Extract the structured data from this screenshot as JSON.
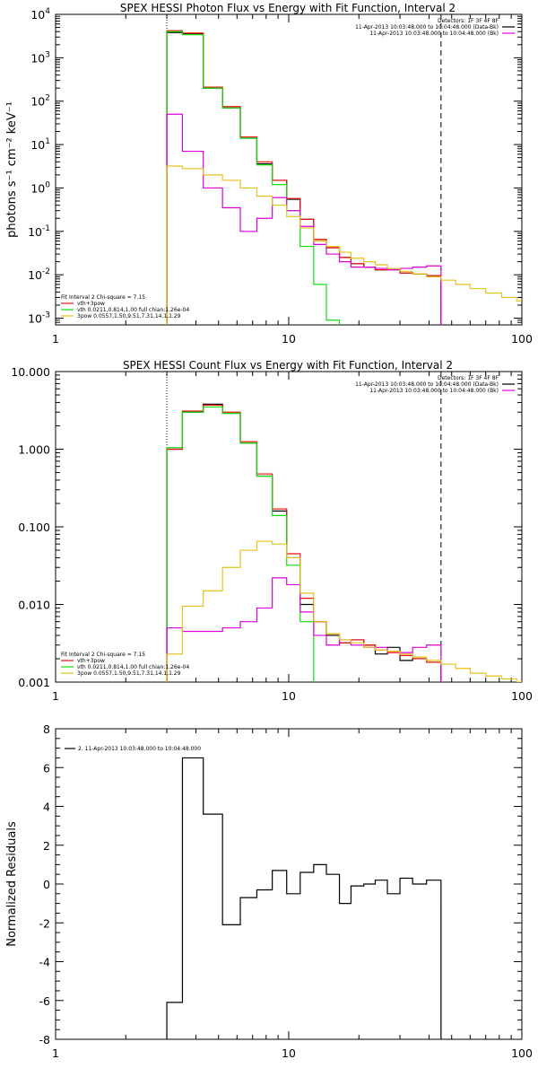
{
  "colors": {
    "black": "#000000",
    "red": "#ee1111",
    "green": "#11dd11",
    "magenta": "#dd00dd",
    "yellow": "#e6c21a"
  },
  "chart_data": [
    {
      "type": "line",
      "title": "SPEX HESSI Photon Flux vs Energy with Fit Function, Interval 2",
      "xlabel": "",
      "ylabel": "photons s⁻¹ cm⁻² keV⁻¹",
      "xscale": "log",
      "yscale": "log",
      "xlim": [
        1,
        100
      ],
      "ylim": [
        0.0007,
        10000
      ],
      "xticks": [
        "1",
        "10",
        "100"
      ],
      "yticks": [
        {
          "v": 0.001,
          "base": "10",
          "exp": "-3"
        },
        {
          "v": 0.01,
          "base": "10",
          "exp": "-2"
        },
        {
          "v": 0.1,
          "base": "10",
          "exp": "-1"
        },
        {
          "v": 1,
          "base": "10",
          "exp": "0"
        },
        {
          "v": 10,
          "base": "10",
          "exp": "1"
        },
        {
          "v": 100,
          "base": "10",
          "exp": "2"
        },
        {
          "v": 1000,
          "base": "10",
          "exp": "3"
        },
        {
          "v": 10000,
          "base": "10",
          "exp": "4"
        }
      ],
      "vlines": [
        {
          "x": 3,
          "style": "dotted"
        },
        {
          "x": 45,
          "style": "dashed"
        }
      ],
      "legend_top_right": {
        "lines": [
          "Detectors: 1F 3F 4F 8F",
          "11-Apr-2013 10:03:48.000 to 10:04:48.000 (Data-Bk)",
          "11-Apr-2013 10:03:48.000 to 10:04:48.000 (Bk)"
        ],
        "colors": [
          "",
          "black",
          "magenta"
        ]
      },
      "legend_bottom_left": {
        "lines": [
          "Fit Interval 2   Chi-square = 7.15",
          "vth+3pow",
          "vth 0.0211,0.814,1.00  full chian:1.26e-04",
          "3pow 0.0557,1.50,9.51,7.31,14.1,1.29"
        ],
        "colors": [
          "",
          "red",
          "green",
          "yellow"
        ]
      },
      "edges": [
        3,
        3.5,
        4.3,
        5.2,
        6.2,
        7.3,
        8.5,
        9.8,
        11.2,
        12.8,
        14.5,
        16.5,
        18.5,
        21,
        23.5,
        26.5,
        30,
        34,
        39,
        45
      ],
      "series": [
        {
          "color": "black",
          "values": [
            3800,
            3600,
            200,
            70,
            14,
            3.6,
            1.5,
            0.55,
            0.19,
            0.065,
            0.042,
            0.025,
            0.018,
            0.015,
            0.013,
            0.014,
            0.011,
            0.0105,
            0.0095
          ]
        },
        {
          "color": "red",
          "values": [
            4200,
            3700,
            210,
            75,
            15,
            4.0,
            1.5,
            0.57,
            0.19,
            0.065,
            0.042,
            0.025,
            0.018,
            0.015,
            0.013,
            0.013,
            0.011,
            0.0105,
            0.0095
          ]
        },
        {
          "color": "green",
          "values": [
            4000,
            3400,
            200,
            70,
            14,
            3.4,
            1.2,
            0.3,
            0.045,
            0.006,
            0.0009
          ]
        },
        {
          "color": "magenta",
          "values": [
            50,
            7,
            1.0,
            0.35,
            0.1,
            0.2,
            0.6,
            0.3,
            0.13,
            0.05,
            0.03,
            0.02,
            0.015,
            0.015,
            0.014,
            0.013,
            0.014,
            0.015,
            0.016
          ]
        },
        {
          "color": "yellow",
          "edges": [
            3,
            3.5,
            4.3,
            5.2,
            6.2,
            7.3,
            8.5,
            9.8,
            11.2,
            12.8,
            14.5,
            16.5,
            18.5,
            21,
            23.5,
            26.5,
            30,
            34,
            39,
            45,
            52,
            60,
            70,
            82,
            95,
            100
          ],
          "values": [
            3.2,
            2.8,
            2.0,
            1.5,
            1.0,
            0.65,
            0.4,
            0.22,
            0.12,
            0.06,
            0.045,
            0.033,
            0.024,
            0.02,
            0.017,
            0.014,
            0.012,
            0.0105,
            0.009,
            0.0075,
            0.006,
            0.0048,
            0.0038,
            0.003,
            0.0025
          ]
        }
      ]
    },
    {
      "type": "line",
      "title": "SPEX HESSI Count Flux vs Energy with Fit Function, Interval 2",
      "xlabel": "",
      "ylabel": "",
      "xscale": "log",
      "yscale": "log",
      "xlim": [
        1,
        100
      ],
      "ylim": [
        0.001,
        10
      ],
      "xticks": [
        "1",
        "10",
        "100"
      ],
      "yticks": [
        {
          "v": 0.001,
          "label": "0.001"
        },
        {
          "v": 0.01,
          "label": "0.010"
        },
        {
          "v": 0.1,
          "label": "0.100"
        },
        {
          "v": 1,
          "label": "1.000"
        },
        {
          "v": 10,
          "label": "10.000"
        }
      ],
      "vlines": [
        {
          "x": 3,
          "style": "dotted"
        },
        {
          "x": 45,
          "style": "dashed"
        }
      ],
      "legend_top_right": {
        "lines": [
          "Detectors: 1F 3F 4F 8F",
          "11-Apr-2013 10:03:48.000 to 10:04:48.000 (Data-Bk)",
          "11-Apr-2013 10:03:48.000 to 10:04:48.000 (Bk)"
        ],
        "colors": [
          "",
          "black",
          "magenta"
        ]
      },
      "legend_bottom_left": {
        "lines": [
          "Fit Interval 2   Chi-square = 7.15",
          "vth+3pow",
          "vth 0.0211,0.814,1.00  full chian:1.26e-04",
          "3pow 0.0557,1.50,9.51,7.31,14.1,1.29"
        ],
        "colors": [
          "",
          "red",
          "green",
          "yellow"
        ]
      },
      "edges": [
        3,
        3.5,
        4.3,
        5.2,
        6.2,
        7.3,
        8.5,
        9.8,
        11.2,
        12.8,
        14.5,
        16.5,
        18.5,
        21,
        23.5,
        26.5,
        30,
        34,
        39,
        45
      ],
      "series": [
        {
          "color": "black",
          "values": [
            1.0,
            3.0,
            3.8,
            2.9,
            1.2,
            0.45,
            0.16,
            0.04,
            0.01,
            0.006,
            0.004,
            0.0032,
            0.0035,
            0.003,
            0.0023,
            0.0028,
            0.0019,
            0.002,
            0.0018
          ]
        },
        {
          "color": "red",
          "values": [
            1.0,
            3.1,
            3.7,
            3.0,
            1.25,
            0.48,
            0.17,
            0.045,
            0.012,
            0.006,
            0.0042,
            0.0032,
            0.0035,
            0.003,
            0.0026,
            0.0024,
            0.0022,
            0.002,
            0.0018
          ]
        },
        {
          "color": "green",
          "values": [
            1.05,
            3.0,
            3.5,
            2.9,
            1.2,
            0.45,
            0.14,
            0.032,
            0.006,
            0.0009
          ]
        },
        {
          "color": "magenta",
          "values": [
            0.005,
            0.0045,
            0.0045,
            0.005,
            0.006,
            0.009,
            0.022,
            0.018,
            0.008,
            0.004,
            0.003,
            0.0035,
            0.003,
            0.0028,
            0.0028,
            0.0025,
            0.0024,
            0.0028,
            0.003
          ]
        },
        {
          "color": "yellow",
          "edges": [
            3,
            3.5,
            4.3,
            5.2,
            6.2,
            7.3,
            8.5,
            9.8,
            11.2,
            12.8,
            14.5,
            16.5,
            18.5,
            21,
            23.5,
            26.5,
            30,
            34,
            39,
            45,
            52,
            60,
            70,
            82,
            95,
            100
          ],
          "values": [
            0.0023,
            0.0095,
            0.015,
            0.03,
            0.05,
            0.065,
            0.06,
            0.04,
            0.014,
            0.006,
            0.0042,
            0.0035,
            0.0032,
            0.0028,
            0.0026,
            0.0025,
            0.0023,
            0.0021,
            0.0019,
            0.0017,
            0.0015,
            0.0013,
            0.0012,
            0.0011,
            0.001
          ]
        }
      ]
    },
    {
      "type": "line",
      "title": "",
      "xlabel": "",
      "ylabel": "Normalized Residuals",
      "xscale": "log",
      "yscale": "linear",
      "xlim": [
        1,
        100
      ],
      "ylim": [
        -8,
        8
      ],
      "xticks": [
        "1",
        "10",
        "100"
      ],
      "yticks": [
        {
          "v": 8,
          "label": "8"
        },
        {
          "v": 6,
          "label": "6"
        },
        {
          "v": 4,
          "label": "4"
        },
        {
          "v": 2,
          "label": "2"
        },
        {
          "v": 0,
          "label": "0"
        },
        {
          "v": -2,
          "label": "-2"
        },
        {
          "v": -4,
          "label": "-4"
        },
        {
          "v": -6,
          "label": "-6"
        },
        {
          "v": -8,
          "label": "-8"
        }
      ],
      "legend_top_left": "2. 11-Apr-2013 10:03:48.000 to 10:04:48.000",
      "edges": [
        3,
        3.5,
        4.3,
        5.2,
        6.2,
        7.3,
        8.5,
        9.8,
        11.2,
        12.8,
        14.5,
        16.5,
        18.5,
        21,
        23.5,
        26.5,
        30,
        34,
        39,
        45
      ],
      "series": [
        {
          "color": "black",
          "values": [
            -6.1,
            6.5,
            3.6,
            -2.1,
            -0.7,
            -0.3,
            0.7,
            -0.5,
            0.6,
            1.0,
            0.5,
            -1.0,
            -0.1,
            0.0,
            0.2,
            -0.5,
            0.3,
            0.0,
            0.2
          ]
        }
      ]
    }
  ]
}
